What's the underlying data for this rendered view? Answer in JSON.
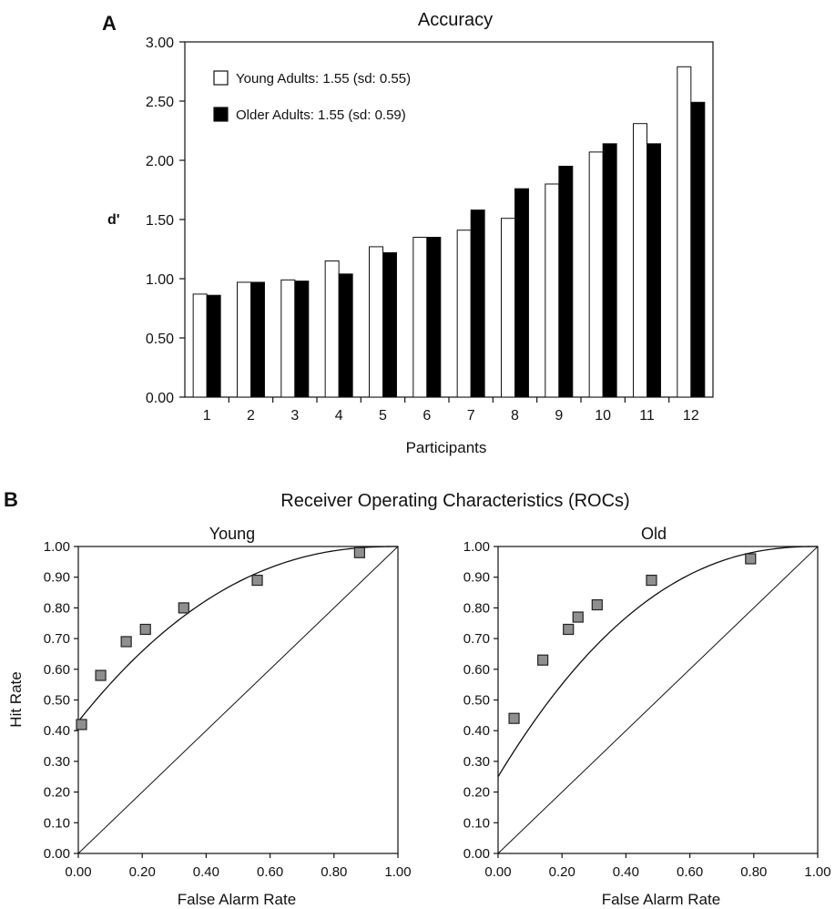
{
  "figure": {
    "panel_a_letter": "A",
    "panel_b_letter": "B",
    "panel_b_title": "Receiver Operating Characteristics (ROCs)"
  },
  "chart_data": [
    {
      "type": "bar",
      "title": "Accuracy",
      "xlabel": "Participants",
      "ylabel": "d'",
      "ylim": [
        0,
        3
      ],
      "yticks": [
        "0.00",
        "0.50",
        "1.00",
        "1.50",
        "2.00",
        "2.50",
        "3.00"
      ],
      "categories": [
        "1",
        "2",
        "3",
        "4",
        "5",
        "6",
        "7",
        "8",
        "9",
        "10",
        "11",
        "12"
      ],
      "legend_position": "top-left",
      "series": [
        {
          "name": "Young Adults",
          "legend_label": "Young Adults: 1.55 (sd: 0.55)",
          "color": "#ffffff",
          "values": [
            0.87,
            0.97,
            0.99,
            1.15,
            1.27,
            1.35,
            1.41,
            1.51,
            1.8,
            2.07,
            2.31,
            2.79
          ]
        },
        {
          "name": "Older Adults",
          "legend_label": "Older Adults:   1.55 (sd: 0.59)",
          "color": "#000000",
          "values": [
            0.86,
            0.97,
            0.98,
            1.04,
            1.22,
            1.35,
            1.58,
            1.76,
            1.95,
            2.14,
            2.14,
            2.49
          ]
        }
      ]
    },
    {
      "type": "scatter",
      "title": "Young",
      "xlabel": "False Alarm Rate",
      "ylabel": "Hit Rate",
      "xlim": [
        0,
        1
      ],
      "ylim": [
        0,
        1
      ],
      "xticks": [
        "0.00",
        "0.20",
        "0.40",
        "0.60",
        "0.80",
        "1.00"
      ],
      "yticks": [
        "0.00",
        "0.10",
        "0.20",
        "0.30",
        "0.40",
        "0.50",
        "0.60",
        "0.70",
        "0.80",
        "0.90",
        "1.00"
      ],
      "points": [
        {
          "x": 0.01,
          "y": 0.42
        },
        {
          "x": 0.07,
          "y": 0.58
        },
        {
          "x": 0.15,
          "y": 0.69
        },
        {
          "x": 0.21,
          "y": 0.73
        },
        {
          "x": 0.33,
          "y": 0.8
        },
        {
          "x": 0.56,
          "y": 0.89
        },
        {
          "x": 0.88,
          "y": 0.98
        }
      ],
      "fit_curve_intercept": 0.43,
      "diagonal": true
    },
    {
      "type": "scatter",
      "title": "Old",
      "xlabel": "False Alarm Rate",
      "ylabel": "",
      "xlim": [
        0,
        1
      ],
      "ylim": [
        0,
        1
      ],
      "xticks": [
        "0.00",
        "0.20",
        "0.40",
        "0.60",
        "0.80",
        "1.00"
      ],
      "yticks": [
        "0.00",
        "0.10",
        "0.20",
        "0.30",
        "0.40",
        "0.50",
        "0.60",
        "0.70",
        "0.80",
        "0.90",
        "1.00"
      ],
      "points": [
        {
          "x": 0.05,
          "y": 0.44
        },
        {
          "x": 0.14,
          "y": 0.63
        },
        {
          "x": 0.22,
          "y": 0.73
        },
        {
          "x": 0.25,
          "y": 0.77
        },
        {
          "x": 0.31,
          "y": 0.81
        },
        {
          "x": 0.48,
          "y": 0.89
        },
        {
          "x": 0.79,
          "y": 0.96
        }
      ],
      "fit_curve_intercept": 0.25,
      "diagonal": true
    }
  ]
}
